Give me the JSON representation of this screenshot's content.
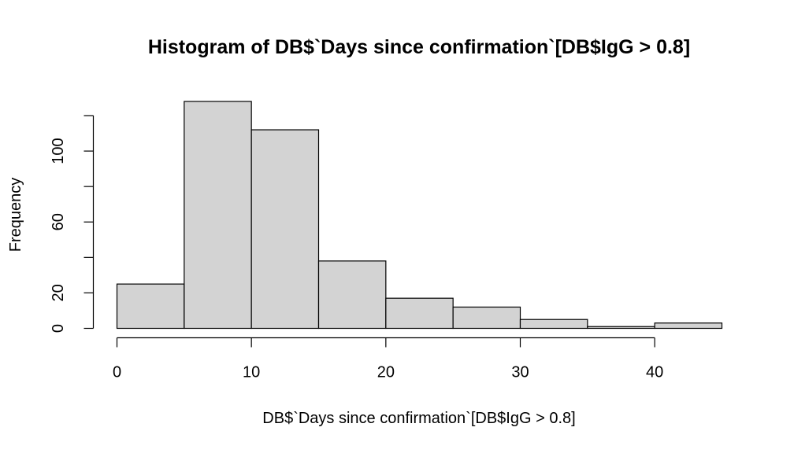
{
  "chart_data": {
    "type": "bar",
    "title": "Histogram of DB$`Days since confirmation`[DB$IgG > 0.8]",
    "xlabel": "DB$`Days since confirmation`[DB$IgG > 0.8]",
    "ylabel": "Frequency",
    "bin_edges": [
      0,
      5,
      10,
      15,
      20,
      25,
      30,
      35,
      40,
      45
    ],
    "values": [
      25,
      128,
      112,
      38,
      17,
      12,
      5,
      1,
      3
    ],
    "xlim": [
      0,
      45
    ],
    "ylim": [
      0,
      120
    ],
    "x_ticks": [
      0,
      10,
      20,
      30,
      40
    ],
    "y_ticks": [
      0,
      20,
      40,
      60,
      80,
      100,
      120
    ],
    "y_tick_labels": [
      "0",
      "20",
      "",
      "60",
      "",
      "100",
      ""
    ],
    "bar_fill": "#d3d3d3",
    "grid": false
  }
}
